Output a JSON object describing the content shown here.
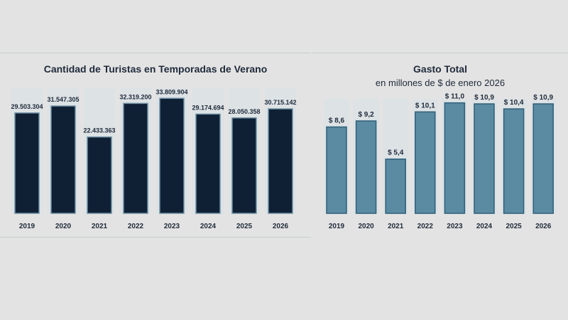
{
  "chart_data": [
    {
      "type": "bar",
      "title": "Cantidad de Turistas en Temporadas de Verano",
      "subtitle": "",
      "categories": [
        "2019",
        "2020",
        "2021",
        "2022",
        "2023",
        "2024",
        "2025",
        "2026"
      ],
      "values": [
        29503304,
        31547305,
        22433363,
        32319200,
        33809904,
        29174694,
        28050358,
        30715142
      ],
      "data_labels": [
        "29.503.304",
        "31.547.305",
        "22.433.363",
        "32.319.200",
        "33.809.904",
        "29.174.694",
        "28.050.358",
        "30.715.142"
      ],
      "xlabel": "",
      "ylabel": "",
      "ylim": [
        0,
        37000000
      ],
      "grid": false,
      "bar_color": "#0f2035",
      "bar_stroke": "#6f8fa3",
      "slot_color": "#dde2e5"
    },
    {
      "type": "bar",
      "title": "Gasto Total",
      "subtitle": "en millones de $ de enero 2026",
      "categories": [
        "2019",
        "2020",
        "2021",
        "2022",
        "2023",
        "2024",
        "2025",
        "2026"
      ],
      "values": [
        8.6,
        9.2,
        5.4,
        10.1,
        11.0,
        10.9,
        10.4,
        10.9
      ],
      "data_labels": [
        "$ 8,6",
        "$ 9,2",
        "$ 5,4",
        "$ 10,1",
        "$ 11,0",
        "$ 10,9",
        "$ 10,4",
        "$ 10,9"
      ],
      "xlabel": "",
      "ylabel": "",
      "ylim": [
        0,
        11.4
      ],
      "grid": false,
      "bar_color": "#5a8ba3",
      "bar_stroke": "#2e5f78",
      "slot_color": "#dde2e5"
    }
  ]
}
